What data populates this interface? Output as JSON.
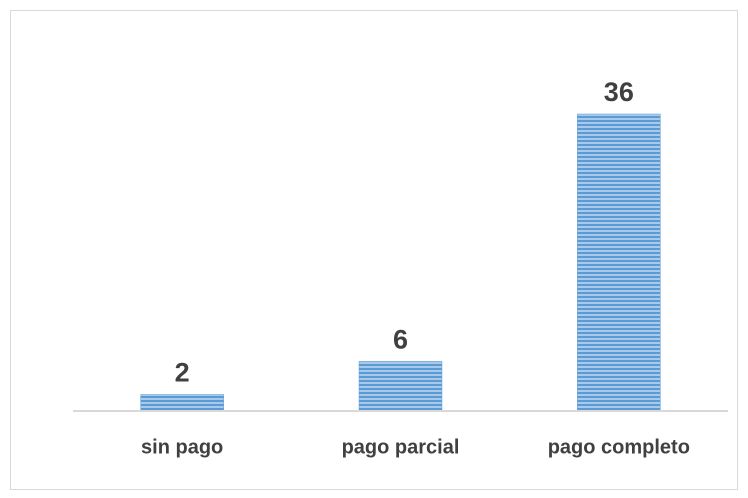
{
  "chart_data": {
    "type": "bar",
    "categories": [
      "sin pago",
      "pago parcial",
      "pago completo"
    ],
    "values": [
      2,
      6,
      36
    ],
    "color": "#5b9bd5",
    "ylim": [
      0,
      40
    ]
  }
}
